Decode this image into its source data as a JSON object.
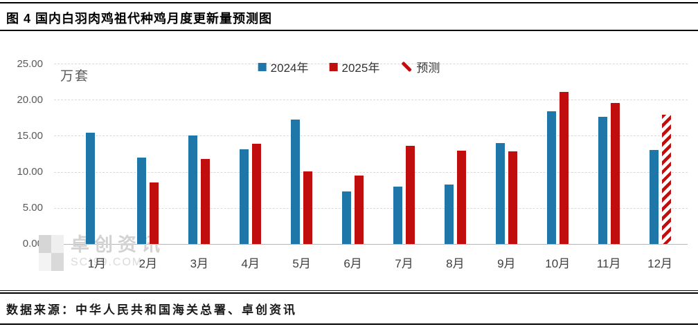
{
  "figure": {
    "title": "图 4 国内白羽肉鸡祖代种鸡月度更新量预测图",
    "source": "数据来源：中华人民共和国海关总署、卓创资讯"
  },
  "watermark": {
    "name": "卓创资讯",
    "site": "SCI99.COM"
  },
  "colors": {
    "series_2024": "#1F76A8",
    "series_2025": "#C00D0D",
    "grid": "#D9D9D9",
    "axis_line": "#B7B7B7",
    "tick_text": "#595959",
    "rule": "#000000"
  },
  "chart_data": {
    "type": "bar",
    "title": "国内白羽肉鸡祖代种鸡月度更新量预测图",
    "unit_label": "万套",
    "categories": [
      "1月",
      "2月",
      "3月",
      "4月",
      "5月",
      "6月",
      "7月",
      "8月",
      "9月",
      "10月",
      "11月",
      "12月"
    ],
    "series": [
      {
        "name": "2024年",
        "color": "#1F76A8",
        "values": [
          15.4,
          12.0,
          15.0,
          13.1,
          17.2,
          7.3,
          8.0,
          8.2,
          14.0,
          18.4,
          17.6,
          13.0
        ]
      },
      {
        "name": "2025年",
        "color": "#C00D0D",
        "values": [
          null,
          8.5,
          11.8,
          13.9,
          10.1,
          9.5,
          13.6,
          12.9,
          12.8,
          21.1,
          19.5,
          17.9
        ],
        "hatch_index": 11
      }
    ],
    "forecast_note": "2025年12月为预测值（红白斜纹柱）",
    "legend": [
      "2024年",
      "2025年",
      "预测"
    ],
    "legend_position": "top-center",
    "ylim": [
      0,
      25
    ],
    "ytick_labels": [
      "25.00",
      "20.00",
      "15.00",
      "10.00",
      "5.00",
      "0.00"
    ],
    "grid": "horizontal-dashed"
  }
}
